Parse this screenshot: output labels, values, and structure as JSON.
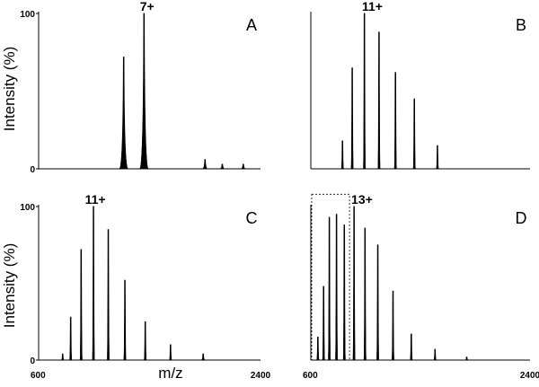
{
  "axes": {
    "ylabel": "Intensity (%)",
    "xlabel": "m/z"
  },
  "chart_data": [
    {
      "type": "line",
      "panel": "A",
      "panel_label": "A",
      "charge_label": "7+",
      "charge_label_x": 1480,
      "x_range": [
        600,
        2400
      ],
      "ylim": [
        0,
        100
      ],
      "ytick_labels": [
        "100",
        "0"
      ],
      "xtick_labels": [],
      "peaks": [
        {
          "x": 1290,
          "y": 72,
          "w": 10
        },
        {
          "x": 1455,
          "y": 100,
          "w": 10
        },
        {
          "x": 1950,
          "y": 6,
          "w": 6
        },
        {
          "x": 2090,
          "y": 3,
          "w": 5
        },
        {
          "x": 2260,
          "y": 3,
          "w": 5
        }
      ]
    },
    {
      "type": "line",
      "panel": "B",
      "panel_label": "B",
      "charge_label": "11+",
      "charge_label_x": 1105,
      "x_range": [
        600,
        2400
      ],
      "ylim": [
        0,
        100
      ],
      "ytick_labels": [],
      "xtick_labels": [],
      "peaks": [
        {
          "x": 860,
          "y": 18,
          "w": 3
        },
        {
          "x": 940,
          "y": 65,
          "w": 3
        },
        {
          "x": 1040,
          "y": 100,
          "w": 3
        },
        {
          "x": 1160,
          "y": 88,
          "w": 3
        },
        {
          "x": 1295,
          "y": 62,
          "w": 3
        },
        {
          "x": 1450,
          "y": 45,
          "w": 3
        },
        {
          "x": 1640,
          "y": 15,
          "w": 3
        }
      ]
    },
    {
      "type": "line",
      "panel": "C",
      "panel_label": "C",
      "charge_label": "11+",
      "charge_label_x": 1060,
      "x_range": [
        600,
        2400
      ],
      "ylim": [
        0,
        100
      ],
      "ytick_labels": [
        "100",
        "0"
      ],
      "xtick_labels": [
        "600",
        "2400"
      ],
      "peaks": [
        {
          "x": 795,
          "y": 4,
          "w": 3
        },
        {
          "x": 860,
          "y": 28,
          "w": 3
        },
        {
          "x": 945,
          "y": 72,
          "w": 3
        },
        {
          "x": 1045,
          "y": 100,
          "w": 3
        },
        {
          "x": 1165,
          "y": 85,
          "w": 3
        },
        {
          "x": 1300,
          "y": 52,
          "w": 3
        },
        {
          "x": 1465,
          "y": 25,
          "w": 3
        },
        {
          "x": 1670,
          "y": 10,
          "w": 3
        },
        {
          "x": 1935,
          "y": 4,
          "w": 4
        }
      ]
    },
    {
      "type": "line",
      "panel": "D",
      "panel_label": "D",
      "charge_label": "13+",
      "charge_label_x": 1020,
      "x_range": [
        600,
        2400
      ],
      "ylim": [
        0,
        100
      ],
      "ytick_labels": [],
      "xtick_labels": [
        "600",
        "2400"
      ],
      "highlight_box": {
        "x0": 607,
        "x1": 918,
        "y0": 0,
        "y1": 108
      },
      "peaks": [
        {
          "x": 658,
          "y": 15,
          "w": 3
        },
        {
          "x": 705,
          "y": 48,
          "w": 3
        },
        {
          "x": 752,
          "y": 93,
          "w": 3
        },
        {
          "x": 811,
          "y": 95,
          "w": 3
        },
        {
          "x": 875,
          "y": 88,
          "w": 3
        },
        {
          "x": 955,
          "y": 100,
          "w": 3
        },
        {
          "x": 1045,
          "y": 86,
          "w": 3
        },
        {
          "x": 1150,
          "y": 75,
          "w": 3
        },
        {
          "x": 1275,
          "y": 45,
          "w": 3
        },
        {
          "x": 1425,
          "y": 17,
          "w": 3
        },
        {
          "x": 1620,
          "y": 7,
          "w": 3
        },
        {
          "x": 1880,
          "y": 2,
          "w": 3
        }
      ]
    }
  ]
}
